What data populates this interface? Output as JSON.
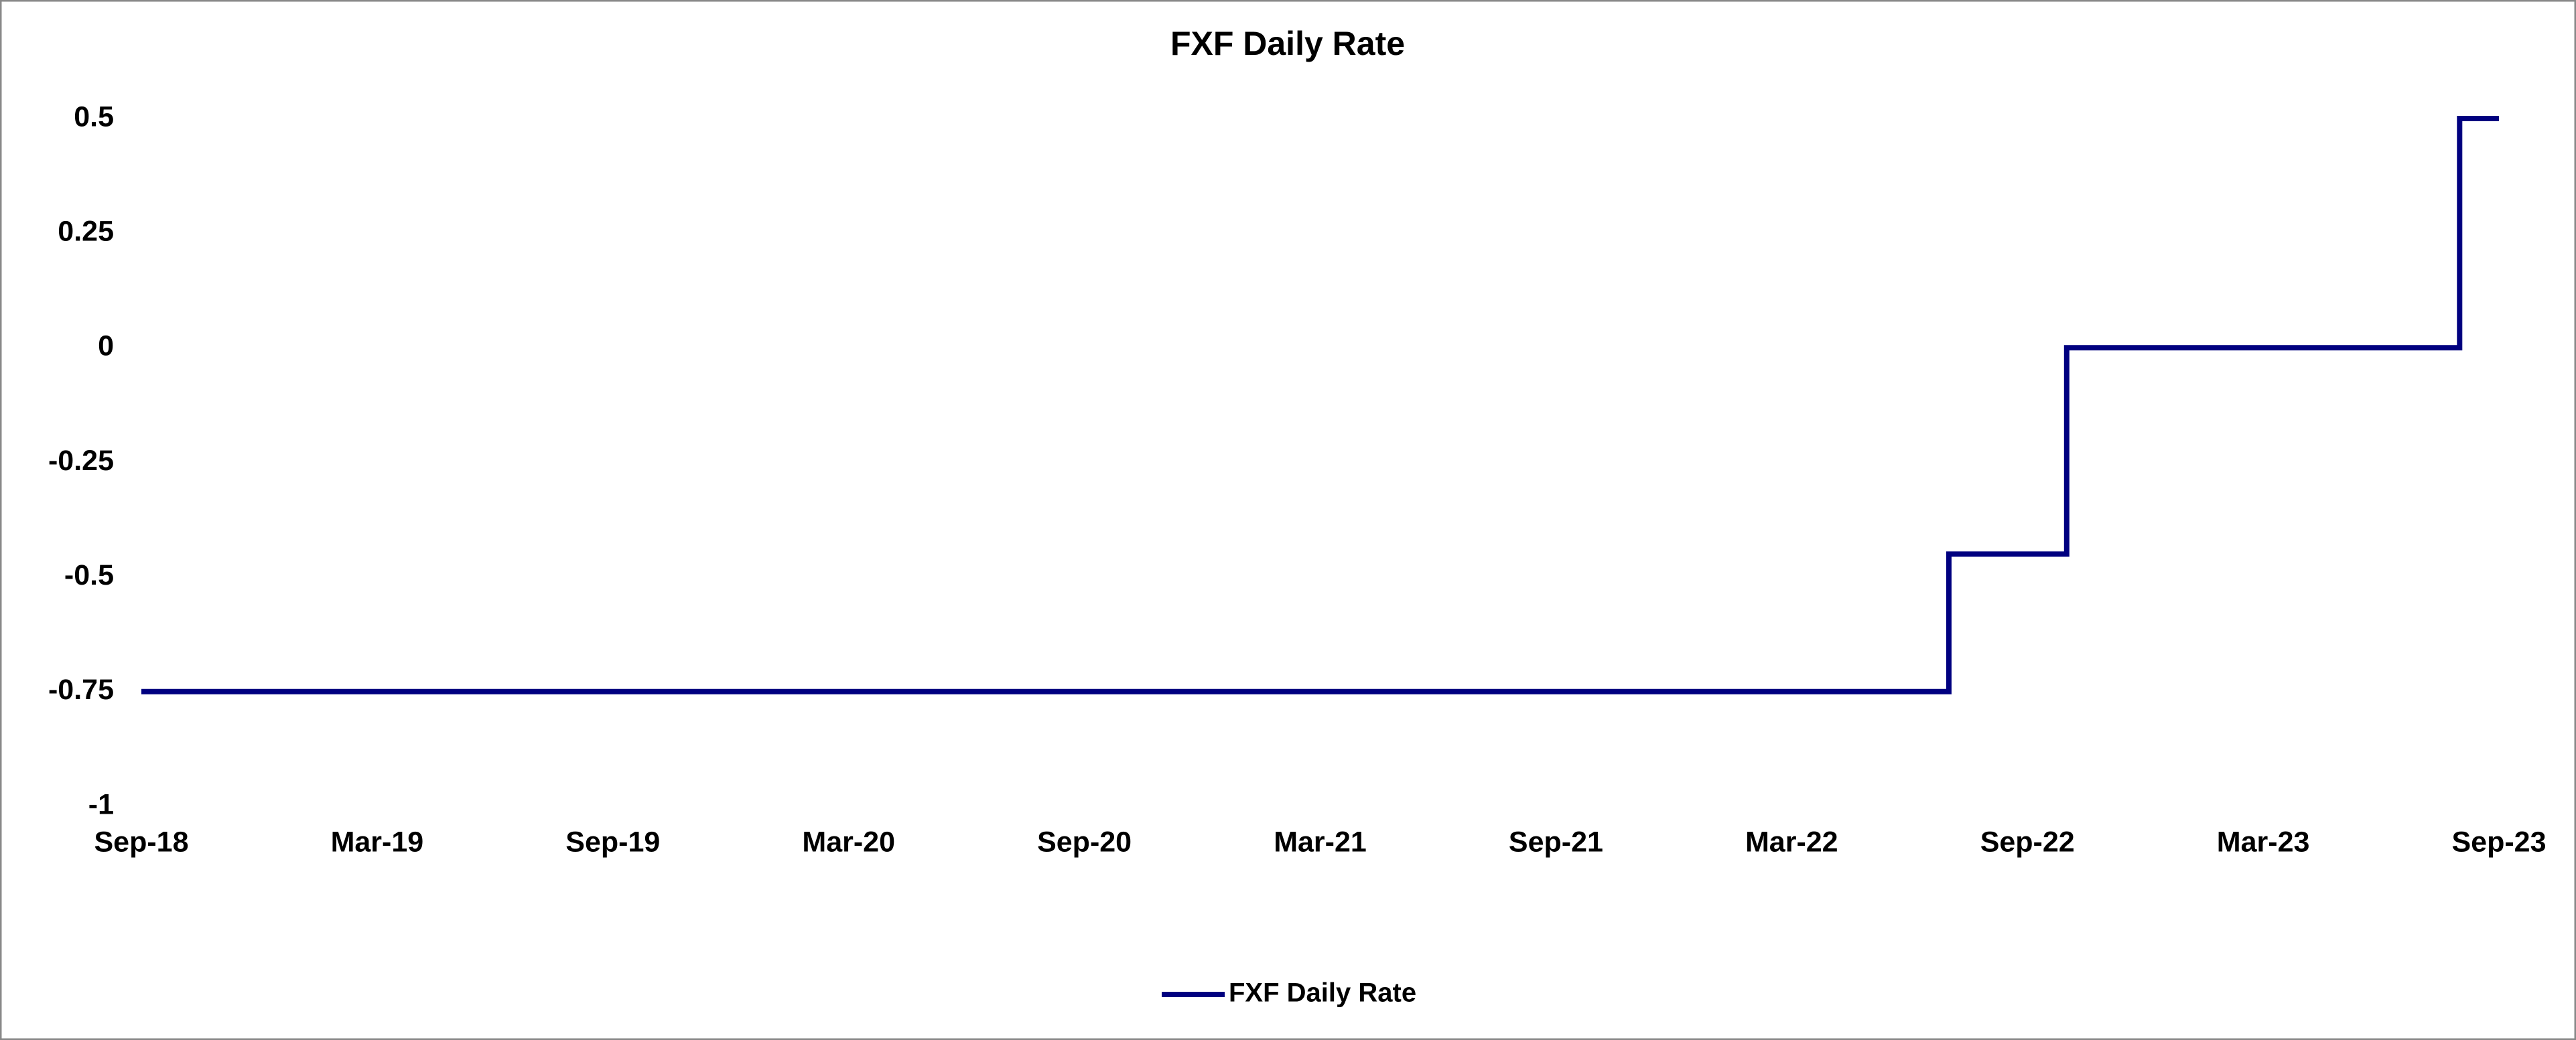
{
  "chart_data": {
    "type": "line",
    "title": "FXF Daily Rate",
    "x": [
      "Sep-18",
      "Jul-22",
      "Jul-22",
      "Oct-22",
      "Oct-22",
      "Aug-23",
      "Aug-23",
      "Sep-23"
    ],
    "series": [
      {
        "name": "FXF Daily Rate",
        "color": "#000080",
        "values": [
          -0.75,
          -0.75,
          -0.45,
          -0.45,
          0,
          0,
          0.5,
          0.5
        ]
      }
    ],
    "xlim": [
      "Sep-18",
      "Sep-23"
    ],
    "xticks": [
      "Sep-18",
      "Mar-19",
      "Sep-19",
      "Mar-20",
      "Sep-20",
      "Mar-21",
      "Sep-21",
      "Mar-22",
      "Sep-22",
      "Mar-23",
      "Sep-23"
    ],
    "ylim": [
      -1,
      0.5
    ],
    "yticks": [
      -1,
      -0.75,
      -0.5,
      -0.25,
      0,
      0.25,
      0.5
    ],
    "grid": false,
    "legend": "bottom"
  }
}
